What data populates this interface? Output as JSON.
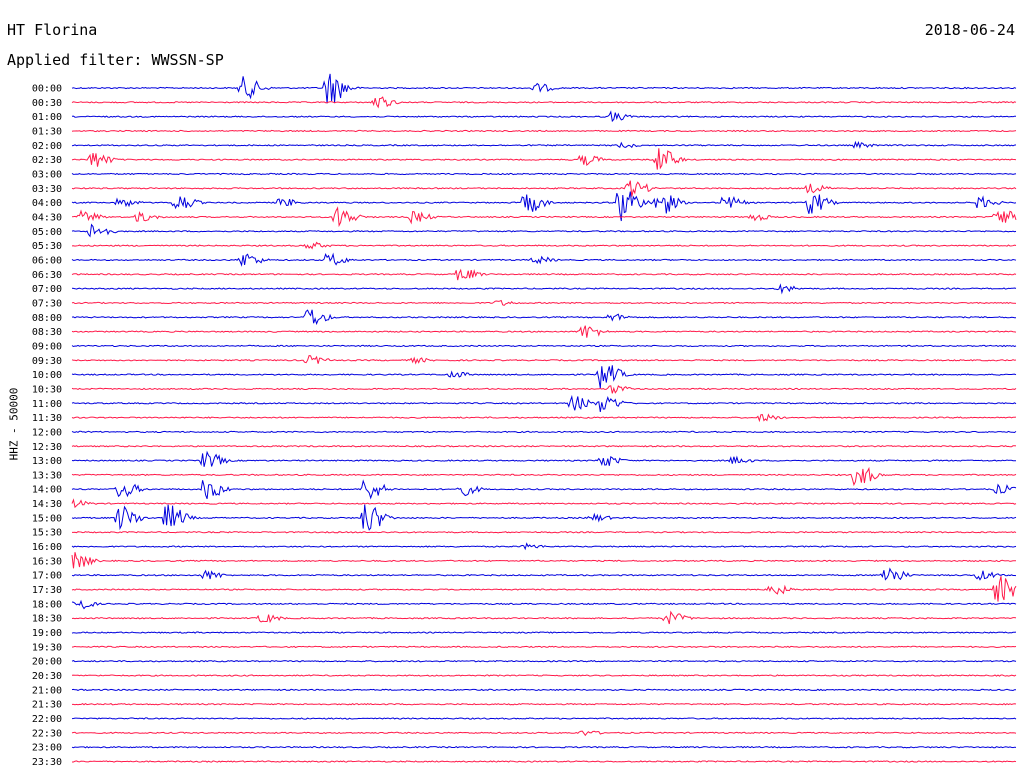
{
  "header": {
    "station": "HT Florina",
    "date": "2018-06-24",
    "filter": "Applied filter: WWSSN-SP"
  },
  "colors": {
    "blue": "#0000dd",
    "red": "#ff1a4a"
  },
  "chart_data": {
    "type": "line",
    "title": "HT Florina",
    "subtitle": "Applied filter: WWSSN-SP",
    "ylabel": "HHZ - 50000",
    "xlabel": "",
    "grid": false,
    "legend": "none",
    "series_colors": [
      "blue",
      "red"
    ],
    "rows": [
      {
        "label": "00:00",
        "events": [
          [
            0.18,
            12
          ],
          [
            0.27,
            18
          ],
          [
            0.49,
            5
          ]
        ]
      },
      {
        "label": "00:30",
        "events": [
          [
            0.32,
            7
          ]
        ]
      },
      {
        "label": "01:00",
        "events": [
          [
            0.57,
            5
          ]
        ]
      },
      {
        "label": "01:30",
        "events": []
      },
      {
        "label": "02:00",
        "events": [
          [
            0.58,
            3
          ],
          [
            0.83,
            3
          ]
        ]
      },
      {
        "label": "02:30",
        "events": [
          [
            0.02,
            9
          ],
          [
            0.54,
            6
          ],
          [
            0.62,
            13
          ]
        ]
      },
      {
        "label": "03:00",
        "events": []
      },
      {
        "label": "03:30",
        "events": [
          [
            0.59,
            9
          ],
          [
            0.78,
            5
          ]
        ]
      },
      {
        "label": "04:00",
        "events": [
          [
            0.05,
            5
          ],
          [
            0.11,
            9
          ],
          [
            0.22,
            5
          ],
          [
            0.48,
            11
          ],
          [
            0.58,
            20
          ],
          [
            0.62,
            14
          ],
          [
            0.69,
            7
          ],
          [
            0.78,
            12
          ],
          [
            0.96,
            6
          ]
        ]
      },
      {
        "label": "04:30",
        "events": [
          [
            0.01,
            6
          ],
          [
            0.07,
            5
          ],
          [
            0.28,
            11
          ],
          [
            0.36,
            6
          ],
          [
            0.72,
            4
          ],
          [
            0.98,
            9
          ]
        ]
      },
      {
        "label": "05:00",
        "events": [
          [
            0.02,
            8
          ]
        ]
      },
      {
        "label": "05:30",
        "events": [
          [
            0.25,
            4
          ]
        ]
      },
      {
        "label": "06:00",
        "events": [
          [
            0.18,
            8
          ],
          [
            0.27,
            7
          ],
          [
            0.49,
            4
          ]
        ]
      },
      {
        "label": "06:30",
        "events": [
          [
            0.41,
            7
          ]
        ]
      },
      {
        "label": "07:00",
        "events": [
          [
            0.75,
            4
          ]
        ]
      },
      {
        "label": "07:30",
        "events": [
          [
            0.45,
            3
          ]
        ]
      },
      {
        "label": "08:00",
        "events": [
          [
            0.25,
            10
          ],
          [
            0.57,
            4
          ]
        ]
      },
      {
        "label": "08:30",
        "events": [
          [
            0.54,
            8
          ]
        ]
      },
      {
        "label": "09:00",
        "events": []
      },
      {
        "label": "09:30",
        "events": [
          [
            0.25,
            5
          ],
          [
            0.36,
            3
          ]
        ]
      },
      {
        "label": "10:00",
        "events": [
          [
            0.4,
            4
          ],
          [
            0.56,
            14
          ]
        ]
      },
      {
        "label": "10:30",
        "events": [
          [
            0.57,
            5
          ]
        ]
      },
      {
        "label": "11:00",
        "events": [
          [
            0.53,
            8
          ],
          [
            0.56,
            10
          ]
        ]
      },
      {
        "label": "11:30",
        "events": [
          [
            0.73,
            4
          ]
        ]
      },
      {
        "label": "12:00",
        "events": []
      },
      {
        "label": "12:30",
        "events": []
      },
      {
        "label": "13:00",
        "events": [
          [
            0.14,
            9
          ],
          [
            0.56,
            7
          ],
          [
            0.7,
            4
          ]
        ]
      },
      {
        "label": "13:30",
        "events": [
          [
            0.83,
            12
          ]
        ]
      },
      {
        "label": "14:00",
        "events": [
          [
            0.05,
            9
          ],
          [
            0.14,
            11
          ],
          [
            0.31,
            12
          ],
          [
            0.41,
            7
          ],
          [
            0.98,
            5
          ]
        ]
      },
      {
        "label": "14:30",
        "events": [
          [
            0.0,
            4
          ]
        ]
      },
      {
        "label": "15:00",
        "events": [
          [
            0.05,
            13
          ],
          [
            0.1,
            14
          ],
          [
            0.31,
            16
          ],
          [
            0.55,
            4
          ]
        ]
      },
      {
        "label": "15:30",
        "events": []
      },
      {
        "label": "16:00",
        "events": [
          [
            0.48,
            3
          ]
        ]
      },
      {
        "label": "16:30",
        "events": [
          [
            0.0,
            9
          ]
        ]
      },
      {
        "label": "17:00",
        "events": [
          [
            0.14,
            5
          ],
          [
            0.86,
            11
          ],
          [
            0.96,
            5
          ]
        ]
      },
      {
        "label": "17:30",
        "events": [
          [
            0.74,
            6
          ],
          [
            0.98,
            14
          ]
        ]
      },
      {
        "label": "18:00",
        "events": [
          [
            0.0,
            8
          ]
        ]
      },
      {
        "label": "18:30",
        "events": [
          [
            0.2,
            5
          ],
          [
            0.63,
            7
          ]
        ]
      },
      {
        "label": "19:00",
        "events": []
      },
      {
        "label": "19:30",
        "events": []
      },
      {
        "label": "20:00",
        "events": []
      },
      {
        "label": "20:30",
        "events": []
      },
      {
        "label": "21:00",
        "events": []
      },
      {
        "label": "21:30",
        "events": []
      },
      {
        "label": "22:00",
        "events": []
      },
      {
        "label": "22:30",
        "events": [
          [
            0.54,
            3
          ]
        ]
      },
      {
        "label": "23:00",
        "events": []
      },
      {
        "label": "23:30",
        "events": []
      }
    ]
  }
}
